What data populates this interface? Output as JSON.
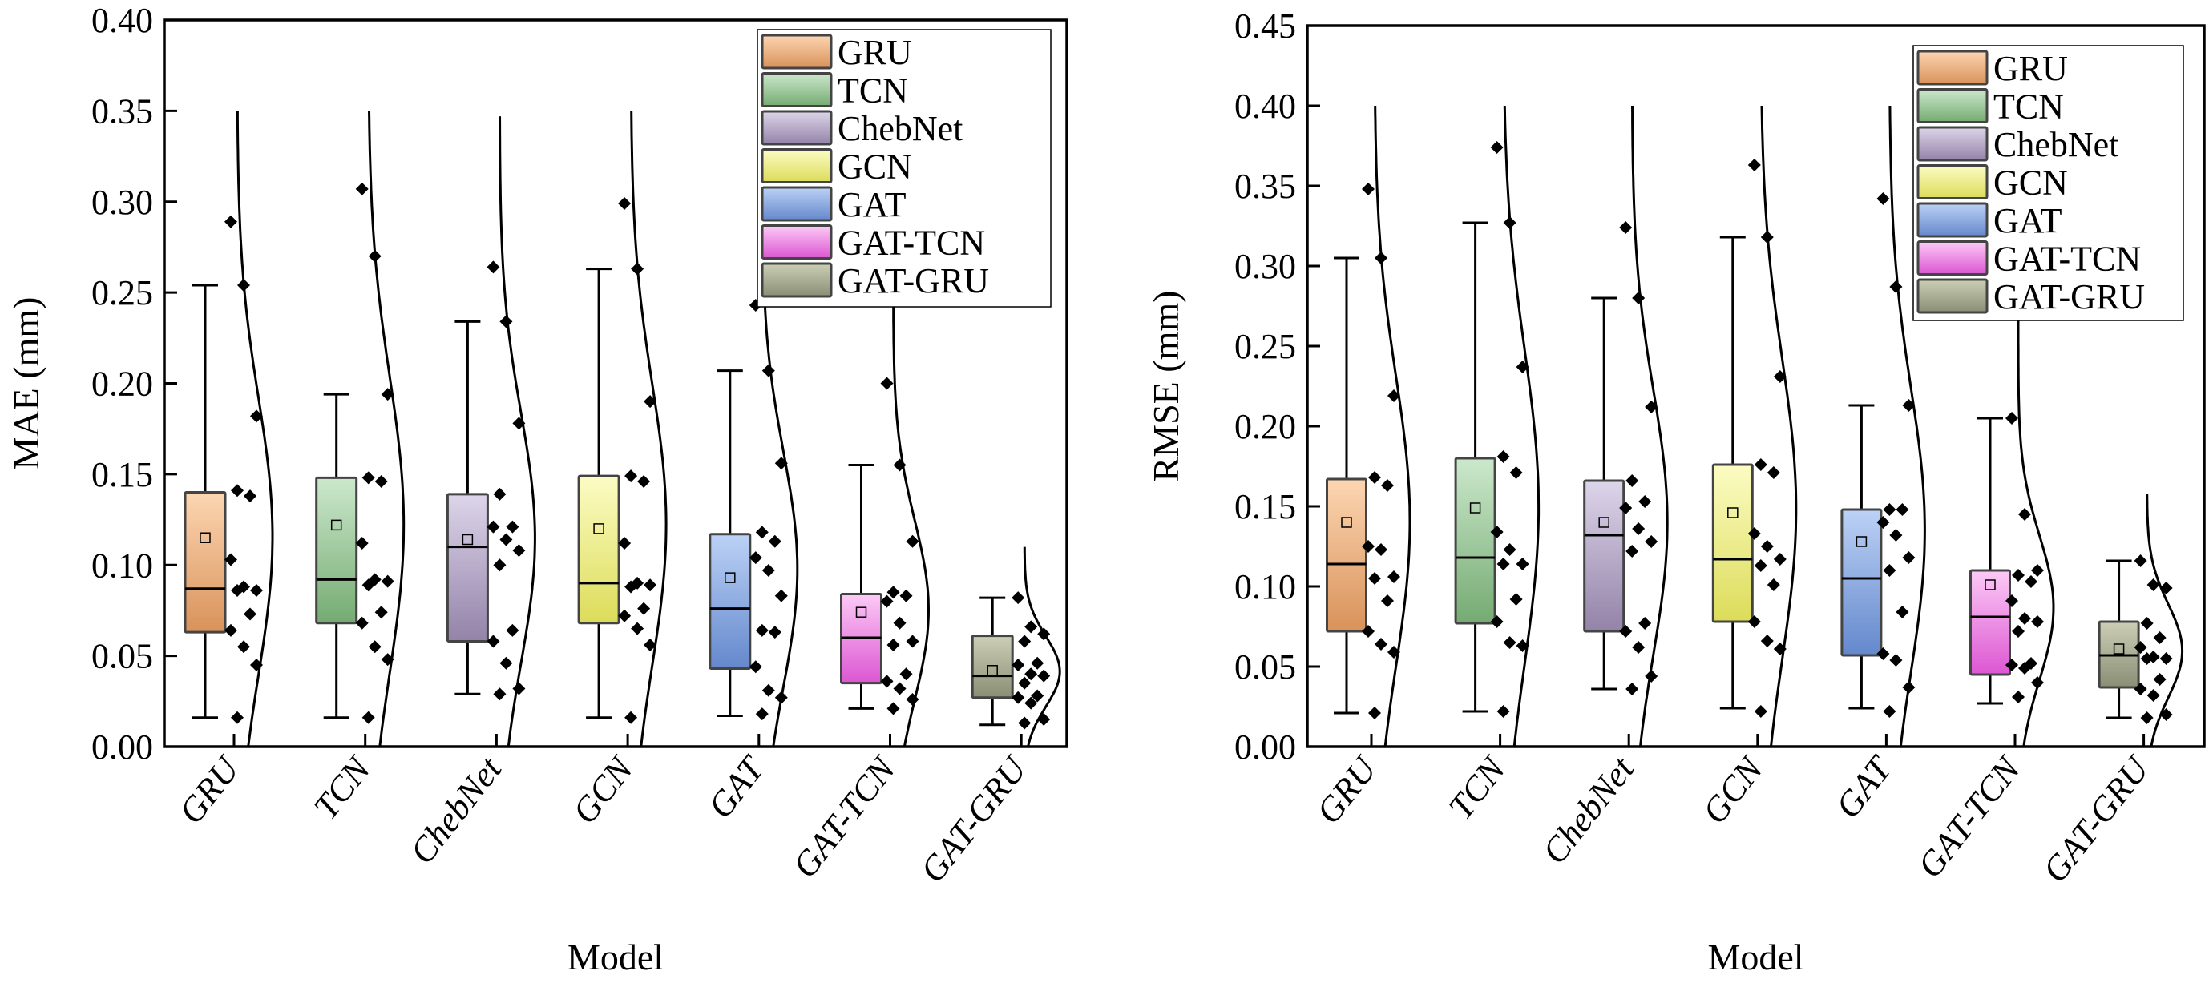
{
  "chart_data": [
    {
      "type": "box",
      "panel": "left",
      "title": "",
      "xlabel": "Model",
      "ylabel": "MAE (mm)",
      "ylim": [
        0,
        0.4
      ],
      "yticks": [
        "0.00",
        "0.05",
        "0.10",
        "0.15",
        "0.20",
        "0.25",
        "0.30",
        "0.35",
        "0.40"
      ],
      "ytick_values": [
        0,
        0.05,
        0.1,
        0.15,
        0.2,
        0.25,
        0.3,
        0.35,
        0.4
      ],
      "grid": false,
      "legend_position": "top-right",
      "categories": [
        "GRU",
        "TCN",
        "ChebNet",
        "GCN",
        "GAT",
        "GAT-TCN",
        "GAT-GRU"
      ],
      "series": [
        {
          "name": "GRU",
          "whisker_low": 0.016,
          "q1": 0.063,
          "median": 0.087,
          "q3": 0.14,
          "whisker_high": 0.254,
          "mean": 0.115,
          "curve_top": 0.35,
          "points": [
            0.289,
            0.254,
            0.182,
            0.141,
            0.138,
            0.103,
            0.088,
            0.086,
            0.086,
            0.073,
            0.064,
            0.055,
            0.045,
            0.016
          ]
        },
        {
          "name": "TCN",
          "whisker_low": 0.016,
          "q1": 0.068,
          "median": 0.092,
          "q3": 0.148,
          "whisker_high": 0.194,
          "mean": 0.122,
          "curve_top": 0.35,
          "points": [
            0.307,
            0.27,
            0.194,
            0.148,
            0.146,
            0.112,
            0.092,
            0.091,
            0.089,
            0.074,
            0.068,
            0.055,
            0.048,
            0.016
          ]
        },
        {
          "name": "ChebNet",
          "whisker_low": 0.029,
          "q1": 0.058,
          "median": 0.11,
          "q3": 0.139,
          "whisker_high": 0.234,
          "mean": 0.114,
          "curve_top": 0.347,
          "points": [
            0.264,
            0.234,
            0.178,
            0.139,
            0.121,
            0.121,
            0.114,
            0.108,
            0.1,
            0.064,
            0.058,
            0.046,
            0.032,
            0.029
          ]
        },
        {
          "name": "GCN",
          "whisker_low": 0.016,
          "q1": 0.068,
          "median": 0.09,
          "q3": 0.149,
          "whisker_high": 0.263,
          "mean": 0.12,
          "curve_top": 0.35,
          "points": [
            0.299,
            0.263,
            0.19,
            0.149,
            0.146,
            0.112,
            0.09,
            0.089,
            0.088,
            0.076,
            0.072,
            0.065,
            0.056,
            0.016
          ]
        },
        {
          "name": "GAT",
          "whisker_low": 0.017,
          "q1": 0.043,
          "median": 0.076,
          "q3": 0.117,
          "whisker_high": 0.207,
          "mean": 0.093,
          "curve_top": 0.317,
          "points": [
            0.243,
            0.207,
            0.156,
            0.118,
            0.113,
            0.104,
            0.097,
            0.083,
            0.064,
            0.063,
            0.044,
            0.031,
            0.027,
            0.018
          ]
        },
        {
          "name": "GAT-TCN",
          "whisker_low": 0.021,
          "q1": 0.035,
          "median": 0.06,
          "q3": 0.084,
          "whisker_high": 0.155,
          "mean": 0.074,
          "curve_top": 0.25,
          "points": [
            0.2,
            0.155,
            0.113,
            0.085,
            0.083,
            0.08,
            0.068,
            0.058,
            0.056,
            0.04,
            0.036,
            0.032,
            0.026,
            0.021
          ]
        },
        {
          "name": "GAT-GRU",
          "whisker_low": 0.012,
          "q1": 0.027,
          "median": 0.039,
          "q3": 0.061,
          "whisker_high": 0.082,
          "mean": 0.042,
          "curve_top": 0.11,
          "points": [
            0.082,
            0.066,
            0.062,
            0.058,
            0.046,
            0.045,
            0.04,
            0.039,
            0.035,
            0.028,
            0.027,
            0.024,
            0.015,
            0.013
          ]
        }
      ]
    },
    {
      "type": "box",
      "panel": "right",
      "title": "",
      "xlabel": "Model",
      "ylabel": "RMSE (mm)",
      "ylim": [
        0,
        0.45
      ],
      "yticks": [
        "0.00",
        "0.05",
        "0.10",
        "0.15",
        "0.20",
        "0.25",
        "0.30",
        "0.35",
        "0.40",
        "0.45"
      ],
      "ytick_values": [
        0,
        0.05,
        0.1,
        0.15,
        0.2,
        0.25,
        0.3,
        0.35,
        0.4,
        0.45
      ],
      "grid": false,
      "legend_position": "top-right",
      "categories": [
        "GRU",
        "TCN",
        "ChebNet",
        "GCN",
        "GAT",
        "GAT-TCN",
        "GAT-GRU"
      ],
      "series": [
        {
          "name": "GRU",
          "whisker_low": 0.021,
          "q1": 0.072,
          "median": 0.114,
          "q3": 0.167,
          "whisker_high": 0.305,
          "mean": 0.14,
          "curve_top": 0.4,
          "points": [
            0.348,
            0.305,
            0.219,
            0.168,
            0.163,
            0.125,
            0.123,
            0.106,
            0.105,
            0.091,
            0.072,
            0.064,
            0.059,
            0.021
          ]
        },
        {
          "name": "TCN",
          "whisker_low": 0.022,
          "q1": 0.077,
          "median": 0.118,
          "q3": 0.18,
          "whisker_high": 0.327,
          "mean": 0.149,
          "curve_top": 0.4,
          "points": [
            0.374,
            0.327,
            0.237,
            0.181,
            0.171,
            0.134,
            0.123,
            0.114,
            0.114,
            0.092,
            0.078,
            0.065,
            0.063,
            0.022
          ]
        },
        {
          "name": "ChebNet",
          "whisker_low": 0.036,
          "q1": 0.072,
          "median": 0.132,
          "q3": 0.166,
          "whisker_high": 0.28,
          "mean": 0.14,
          "curve_top": 0.4,
          "points": [
            0.324,
            0.28,
            0.212,
            0.166,
            0.153,
            0.149,
            0.136,
            0.128,
            0.122,
            0.077,
            0.072,
            0.062,
            0.044,
            0.036
          ]
        },
        {
          "name": "GCN",
          "whisker_low": 0.024,
          "q1": 0.078,
          "median": 0.117,
          "q3": 0.176,
          "whisker_high": 0.318,
          "mean": 0.146,
          "curve_top": 0.4,
          "points": [
            0.363,
            0.318,
            0.231,
            0.176,
            0.171,
            0.133,
            0.125,
            0.117,
            0.113,
            0.101,
            0.078,
            0.066,
            0.061,
            0.022
          ]
        },
        {
          "name": "GAT",
          "whisker_low": 0.024,
          "q1": 0.057,
          "median": 0.105,
          "q3": 0.148,
          "whisker_high": 0.213,
          "mean": 0.128,
          "curve_top": 0.4,
          "points": [
            0.342,
            0.287,
            0.213,
            0.148,
            0.148,
            0.14,
            0.132,
            0.118,
            0.11,
            0.084,
            0.058,
            0.054,
            0.037,
            0.022
          ]
        },
        {
          "name": "GAT-TCN",
          "whisker_low": 0.027,
          "q1": 0.045,
          "median": 0.081,
          "q3": 0.11,
          "whisker_high": 0.205,
          "mean": 0.101,
          "curve_top": 0.32,
          "points": [
            0.205,
            0.145,
            0.11,
            0.107,
            0.103,
            0.091,
            0.08,
            0.078,
            0.072,
            0.052,
            0.051,
            0.049,
            0.04,
            0.031
          ]
        },
        {
          "name": "GAT-GRU",
          "whisker_low": 0.018,
          "q1": 0.037,
          "median": 0.057,
          "q3": 0.078,
          "whisker_high": 0.116,
          "mean": 0.061,
          "curve_top": 0.158,
          "points": [
            0.116,
            0.101,
            0.099,
            0.077,
            0.068,
            0.062,
            0.056,
            0.055,
            0.055,
            0.042,
            0.036,
            0.032,
            0.02,
            0.018
          ]
        }
      ]
    }
  ],
  "legend": {
    "items": [
      {
        "label": "GRU",
        "color_top": "#fcd6b2",
        "color_bottom": "#d9925a"
      },
      {
        "label": "TCN",
        "color_top": "#cce8cc",
        "color_bottom": "#75ab72"
      },
      {
        "label": "ChebNet",
        "color_top": "#ddd5ea",
        "color_bottom": "#9383a8"
      },
      {
        "label": "GCN",
        "color_top": "#fcfcc4",
        "color_bottom": "#dcdc5a"
      },
      {
        "label": "GAT",
        "color_top": "#bcd2f6",
        "color_bottom": "#6488cc"
      },
      {
        "label": "GAT-TCN",
        "color_top": "#fccaf6",
        "color_bottom": "#dc56d2"
      },
      {
        "label": "GAT-GRU",
        "color_top": "#cccfb6",
        "color_bottom": "#8a8e74"
      }
    ]
  }
}
